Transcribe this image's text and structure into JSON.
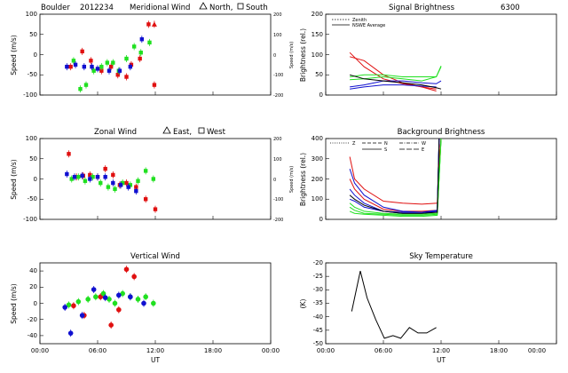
{
  "colors": {
    "red": "#e01010",
    "green": "#20e020",
    "blue": "#1010d0",
    "black": "#000000"
  },
  "chart_data": [
    {
      "id": "meridional",
      "type": "scatter",
      "title_left": "Boulder",
      "title_date": "2012234",
      "title_main": "Meridional Wind",
      "legend_text1": "North,",
      "legend_text2": "South",
      "ylabel": "Speed (m/s)",
      "ylabel_right": "Speed (m/s)",
      "ylim": [
        -100,
        100
      ],
      "yticks": [
        -100,
        -50,
        0,
        50,
        100
      ],
      "ylim_right": [
        -200,
        200
      ],
      "yticks_right": [
        -200,
        -100,
        0,
        100,
        200
      ],
      "xlim": [
        0,
        24
      ],
      "xticks": [
        "00:00",
        "06:00",
        "12:00",
        "18:00",
        "00:00"
      ],
      "series": [
        {
          "color": "red",
          "marker": "square",
          "x": [
            3.2,
            4.4,
            5.3,
            6.4,
            7.4,
            8.1,
            9.0,
            9.5,
            10.4,
            11.3,
            11.9
          ],
          "y": [
            -30,
            8,
            -15,
            -40,
            -30,
            -50,
            -55,
            -25,
            -10,
            75,
            -75
          ]
        },
        {
          "color": "green",
          "marker": "square",
          "x": [
            3.5,
            4.2,
            4.8,
            5.6,
            6.4,
            7.0,
            7.6,
            8.2,
            9.0,
            9.8,
            10.5,
            11.4
          ],
          "y": [
            -15,
            -85,
            -75,
            -40,
            -30,
            -20,
            -20,
            -40,
            -10,
            20,
            5,
            30
          ]
        },
        {
          "color": "blue",
          "marker": "square",
          "x": [
            2.8,
            3.7,
            4.6,
            5.4,
            6.0,
            7.2,
            8.3,
            9.4,
            10.6
          ],
          "y": [
            -30,
            -25,
            -30,
            -30,
            -35,
            -40,
            -40,
            -30,
            38
          ]
        },
        {
          "color": "red",
          "marker": "triangle",
          "x": [
            11.9
          ],
          "y": [
            75
          ]
        }
      ]
    },
    {
      "id": "zonal",
      "type": "scatter",
      "title_main": "Zonal Wind",
      "legend_text1": "East,",
      "legend_text2": "West",
      "ylabel": "Speed (m/s)",
      "ylabel_right": "Speed (m/s)",
      "ylim": [
        -100,
        100
      ],
      "yticks": [
        -100,
        -50,
        0,
        50,
        100
      ],
      "ylim_right": [
        -200,
        200
      ],
      "yticks_right": [
        -200,
        -100,
        0,
        100,
        200
      ],
      "xlim": [
        0,
        24
      ],
      "xticks": [
        "00:00",
        "06:00",
        "12:00",
        "18:00",
        "00:00"
      ],
      "series": [
        {
          "color": "red",
          "marker": "square",
          "x": [
            3.0,
            3.8,
            4.5,
            5.2,
            6.0,
            6.8,
            7.6,
            8.3,
            9.0,
            10.0,
            11.0,
            12.0
          ],
          "y": [
            62,
            5,
            8,
            10,
            5,
            25,
            10,
            -15,
            -10,
            -20,
            -50,
            -75
          ]
        },
        {
          "color": "green",
          "marker": "square",
          "x": [
            3.3,
            4.0,
            4.7,
            5.5,
            6.3,
            7.1,
            7.8,
            8.6,
            9.4,
            10.2,
            11.0,
            11.8
          ],
          "y": [
            0,
            5,
            -5,
            5,
            -10,
            -20,
            -25,
            -10,
            -15,
            -5,
            20,
            0
          ]
        },
        {
          "color": "blue",
          "marker": "square",
          "x": [
            2.8,
            3.6,
            4.4,
            5.2,
            6.0,
            6.8,
            7.6,
            8.4,
            9.2,
            10.0
          ],
          "y": [
            12,
            5,
            8,
            0,
            5,
            5,
            -10,
            -15,
            -20,
            -30
          ]
        }
      ]
    },
    {
      "id": "vertical",
      "type": "scatter",
      "title_main": "Vertical Wind",
      "ylabel": "Speed (m/s)",
      "ylim": [
        -50,
        50
      ],
      "yticks": [
        -40,
        -20,
        0,
        20,
        40
      ],
      "xlim": [
        0,
        24
      ],
      "xticks": [
        "00:00",
        "06:00",
        "12:00",
        "18:00",
        "00:00"
      ],
      "xlabel": "UT",
      "series": [
        {
          "color": "red",
          "marker": "circle",
          "x": [
            3.5,
            4.6,
            6.3,
            7.4,
            8.2,
            9.0,
            9.8
          ],
          "y": [
            -3,
            -15,
            8,
            -27,
            -8,
            42,
            33
          ]
        },
        {
          "color": "green",
          "marker": "circle",
          "x": [
            3.0,
            4.0,
            5.0,
            5.8,
            6.6,
            7.2,
            7.8,
            8.6,
            9.4,
            10.2,
            11.0,
            11.8
          ],
          "y": [
            -2,
            2,
            5,
            8,
            12,
            5,
            0,
            12,
            8,
            5,
            8,
            0
          ]
        },
        {
          "color": "blue",
          "marker": "circle",
          "x": [
            2.6,
            3.2,
            4.4,
            5.6,
            6.8,
            8.2,
            9.4,
            10.8
          ],
          "y": [
            -5,
            -37,
            -15,
            17,
            7,
            10,
            8,
            0
          ]
        }
      ]
    },
    {
      "id": "signal",
      "type": "line",
      "title_main": "Signal Brightness",
      "title_right": "6300",
      "ylabel": "Brightness (rel.)",
      "ylim": [
        0,
        200
      ],
      "yticks": [
        0,
        50,
        100,
        150,
        200
      ],
      "xlim": [
        0,
        24
      ],
      "xticks": [
        "00:00",
        "06:00",
        "12:00",
        "18:00",
        "00:00"
      ],
      "legend": [
        "Zenith",
        "NSWE Average"
      ],
      "series": [
        {
          "color": "red",
          "x": [
            2.5,
            4,
            6,
            8,
            10,
            11.5
          ],
          "y": [
            105,
            70,
            40,
            28,
            20,
            10
          ]
        },
        {
          "color": "red",
          "x": [
            2.5,
            4,
            6,
            8,
            10,
            11.5
          ],
          "y": [
            95,
            85,
            50,
            30,
            20,
            15
          ]
        },
        {
          "color": "green",
          "x": [
            2.5,
            4,
            6,
            8,
            10,
            11.5,
            12
          ],
          "y": [
            45,
            50,
            50,
            45,
            45,
            45,
            70
          ]
        },
        {
          "color": "green",
          "x": [
            2.5,
            4,
            6,
            8,
            10,
            11.5,
            12
          ],
          "y": [
            38,
            40,
            45,
            40,
            35,
            45,
            72
          ]
        },
        {
          "color": "blue",
          "x": [
            2.5,
            4,
            6,
            8,
            10,
            11.5,
            12
          ],
          "y": [
            20,
            25,
            35,
            35,
            30,
            28,
            35
          ]
        },
        {
          "color": "blue",
          "x": [
            2.5,
            4,
            6,
            8,
            10,
            11.5
          ],
          "y": [
            15,
            20,
            25,
            25,
            22,
            20
          ]
        },
        {
          "color": "black",
          "x": [
            2.5,
            4,
            6,
            8,
            10,
            11.5,
            12
          ],
          "y": [
            50,
            40,
            35,
            30,
            25,
            18,
            15
          ]
        }
      ]
    },
    {
      "id": "background",
      "type": "line",
      "title_main": "Background Brightness",
      "ylabel": "Brightness (rel.)",
      "ylim": [
        0,
        400
      ],
      "yticks": [
        0,
        100,
        200,
        300,
        400
      ],
      "xlim": [
        0,
        24
      ],
      "xticks": [
        "00:00",
        "06:00",
        "12:00",
        "18:00",
        "00:00"
      ],
      "legend": [
        "Z",
        "N",
        "S",
        "W",
        "E"
      ],
      "series": [
        {
          "color": "red",
          "x": [
            2.5,
            3,
            4,
            6,
            8,
            10,
            11.6,
            11.8,
            12
          ],
          "y": [
            310,
            200,
            150,
            90,
            80,
            75,
            80,
            300,
            400
          ]
        },
        {
          "color": "red",
          "x": [
            2.5,
            3,
            4,
            6,
            8,
            10,
            11.6,
            11.8,
            12
          ],
          "y": [
            200,
            150,
            100,
            50,
            40,
            40,
            45,
            300,
            400
          ]
        },
        {
          "color": "blue",
          "x": [
            2.5,
            3,
            4,
            6,
            8,
            10,
            11.6,
            11.8
          ],
          "y": [
            150,
            120,
            80,
            40,
            30,
            30,
            40,
            400
          ]
        },
        {
          "color": "blue",
          "x": [
            2.5,
            3,
            4,
            6,
            8,
            10,
            11.6,
            11.8
          ],
          "y": [
            100,
            90,
            60,
            40,
            35,
            35,
            45,
            400
          ]
        },
        {
          "color": "blue",
          "x": [
            2.5,
            3,
            4,
            6,
            8,
            10,
            11.6,
            11.8
          ],
          "y": [
            250,
            180,
            120,
            60,
            40,
            35,
            40,
            400
          ]
        },
        {
          "color": "green",
          "x": [
            2.5,
            3,
            4,
            6,
            8,
            10,
            11.6,
            12
          ],
          "y": [
            40,
            30,
            25,
            20,
            15,
            15,
            20,
            400
          ]
        },
        {
          "color": "green",
          "x": [
            2.5,
            3,
            4,
            6,
            8,
            10,
            11.6,
            12
          ],
          "y": [
            60,
            45,
            30,
            25,
            20,
            20,
            25,
            400
          ]
        },
        {
          "color": "green",
          "x": [
            2.5,
            3,
            4,
            6,
            8,
            10,
            11.6,
            12
          ],
          "y": [
            80,
            60,
            40,
            30,
            25,
            25,
            30,
            400
          ]
        },
        {
          "color": "black",
          "x": [
            2.5,
            3,
            4,
            6,
            8,
            10,
            11.6,
            11.8
          ],
          "y": [
            120,
            100,
            70,
            40,
            30,
            30,
            35,
            400
          ]
        }
      ]
    },
    {
      "id": "skytemp",
      "type": "line",
      "title_main": "Sky Temperature",
      "ylabel": "(K)",
      "ylim": [
        -50,
        -20
      ],
      "yticks": [
        -50,
        -45,
        -40,
        -35,
        -30,
        -25,
        -20
      ],
      "xlim": [
        0,
        24
      ],
      "xticks": [
        "00:00",
        "06:00",
        "12:00",
        "18:00",
        "00:00"
      ],
      "xlabel": "UT",
      "series": [
        {
          "color": "black",
          "x": [
            2.7,
            3.6,
            4.3,
            5.2,
            6.1,
            7.0,
            7.8,
            8.7,
            9.6,
            10.5,
            11.5
          ],
          "y": [
            -38,
            -23,
            -33,
            -41,
            -48,
            -47,
            -48,
            -44,
            -46,
            -46,
            -44
          ]
        }
      ]
    }
  ]
}
